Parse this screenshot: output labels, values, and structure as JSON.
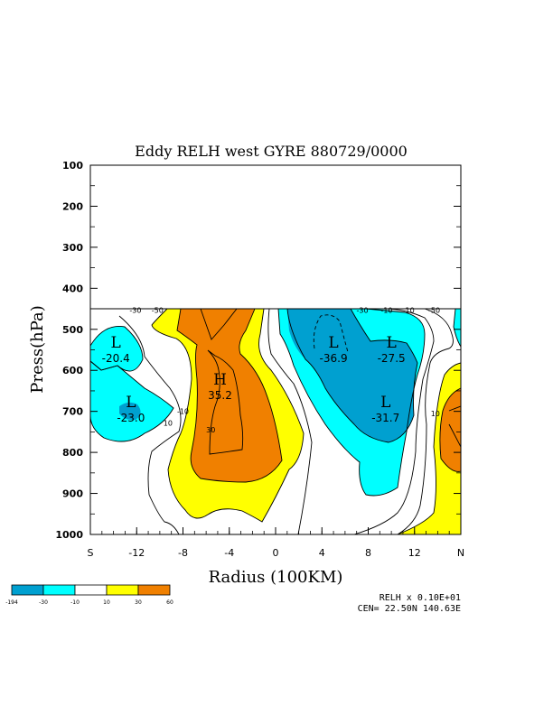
{
  "chart_data": {
    "type": "contour",
    "title": "Eddy RELH west GYRE 880729/0000",
    "xlabel": "Radius (100KM)",
    "ylabel": "Press(hPa)",
    "xlim": [
      -16,
      16
    ],
    "ylim": [
      1000,
      100
    ],
    "x_ticks": [
      "S",
      "-12",
      "-8",
      "-4",
      "0",
      "4",
      "8",
      "12",
      "N"
    ],
    "x_tick_values": [
      -16,
      -12,
      -8,
      -4,
      0,
      4,
      8,
      12,
      16
    ],
    "y_ticks": [
      "100",
      "200",
      "300",
      "400",
      "500",
      "600",
      "700",
      "800",
      "900",
      "1000"
    ],
    "y_tick_values": [
      100,
      200,
      300,
      400,
      500,
      600,
      700,
      800,
      900,
      1000
    ],
    "data_top_pressure": 450,
    "colorbar": {
      "labels": [
        "-194",
        "-30",
        "-10",
        "10",
        "30",
        "60"
      ],
      "colors": [
        "#00a0d0",
        "#00ffff",
        "#ffffff",
        "#ffff00",
        "#f08000"
      ]
    },
    "contour_labels": [
      {
        "text": "-30",
        "x": -12.1,
        "p": 453
      },
      {
        "text": "-50",
        "x": -10.2,
        "p": 453
      },
      {
        "text": "-30",
        "x": 7.5,
        "p": 453
      },
      {
        "text": "-10",
        "x": 9.6,
        "p": 453
      },
      {
        "text": "10",
        "x": 11.6,
        "p": 453
      },
      {
        "text": "-50",
        "x": 13.7,
        "p": 453
      },
      {
        "text": "10",
        "x": -9.3,
        "p": 728
      },
      {
        "text": "-10",
        "x": -8.0,
        "p": 700
      },
      {
        "text": "30",
        "x": -5.6,
        "p": 745
      },
      {
        "text": "10",
        "x": 13.8,
        "p": 705
      }
    ],
    "extrema": [
      {
        "type": "L",
        "x": -13.8,
        "p": 545,
        "value": "-20.4"
      },
      {
        "type": "L",
        "x": -12.5,
        "p": 690,
        "value": "-23.0"
      },
      {
        "type": "H",
        "x": -4.8,
        "p": 635,
        "value": "35.2"
      },
      {
        "type": "L",
        "x": 5.0,
        "p": 545,
        "value": "-36.9"
      },
      {
        "type": "L",
        "x": 10.0,
        "p": 545,
        "value": "-27.5"
      },
      {
        "type": "L",
        "x": 9.5,
        "p": 690,
        "value": "-31.7"
      }
    ],
    "footer": {
      "line1": "RELH x  0.10E+01",
      "line2": "CEN= 22.50N  140.63E"
    }
  }
}
